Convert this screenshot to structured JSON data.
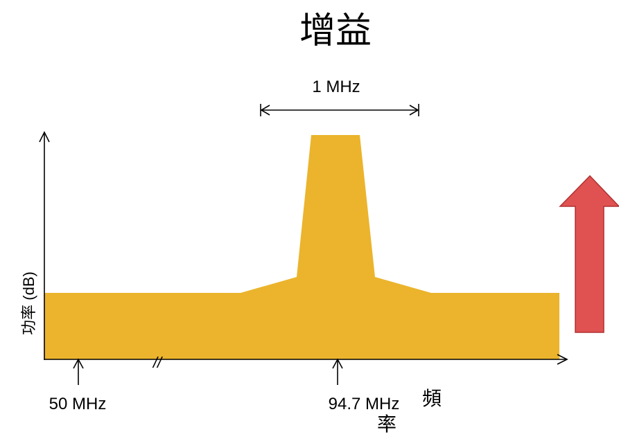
{
  "title": "增益",
  "bandwidth_label": "1 MHz",
  "y_axis_label": "功率 (dB)",
  "x_axis_label_chars": [
    "頻",
    "率"
  ],
  "markers": {
    "start": "50 MHz",
    "center": "94.7 MHz"
  },
  "axis_break_symbol": "//",
  "icons": {
    "gain_arrow": "up-arrow-icon"
  },
  "colors": {
    "spectrum_fill": "#EBB42C",
    "gain_arrow_fill": "#E05252",
    "gain_arrow_stroke": "#B03030",
    "axis": "#000000"
  }
}
